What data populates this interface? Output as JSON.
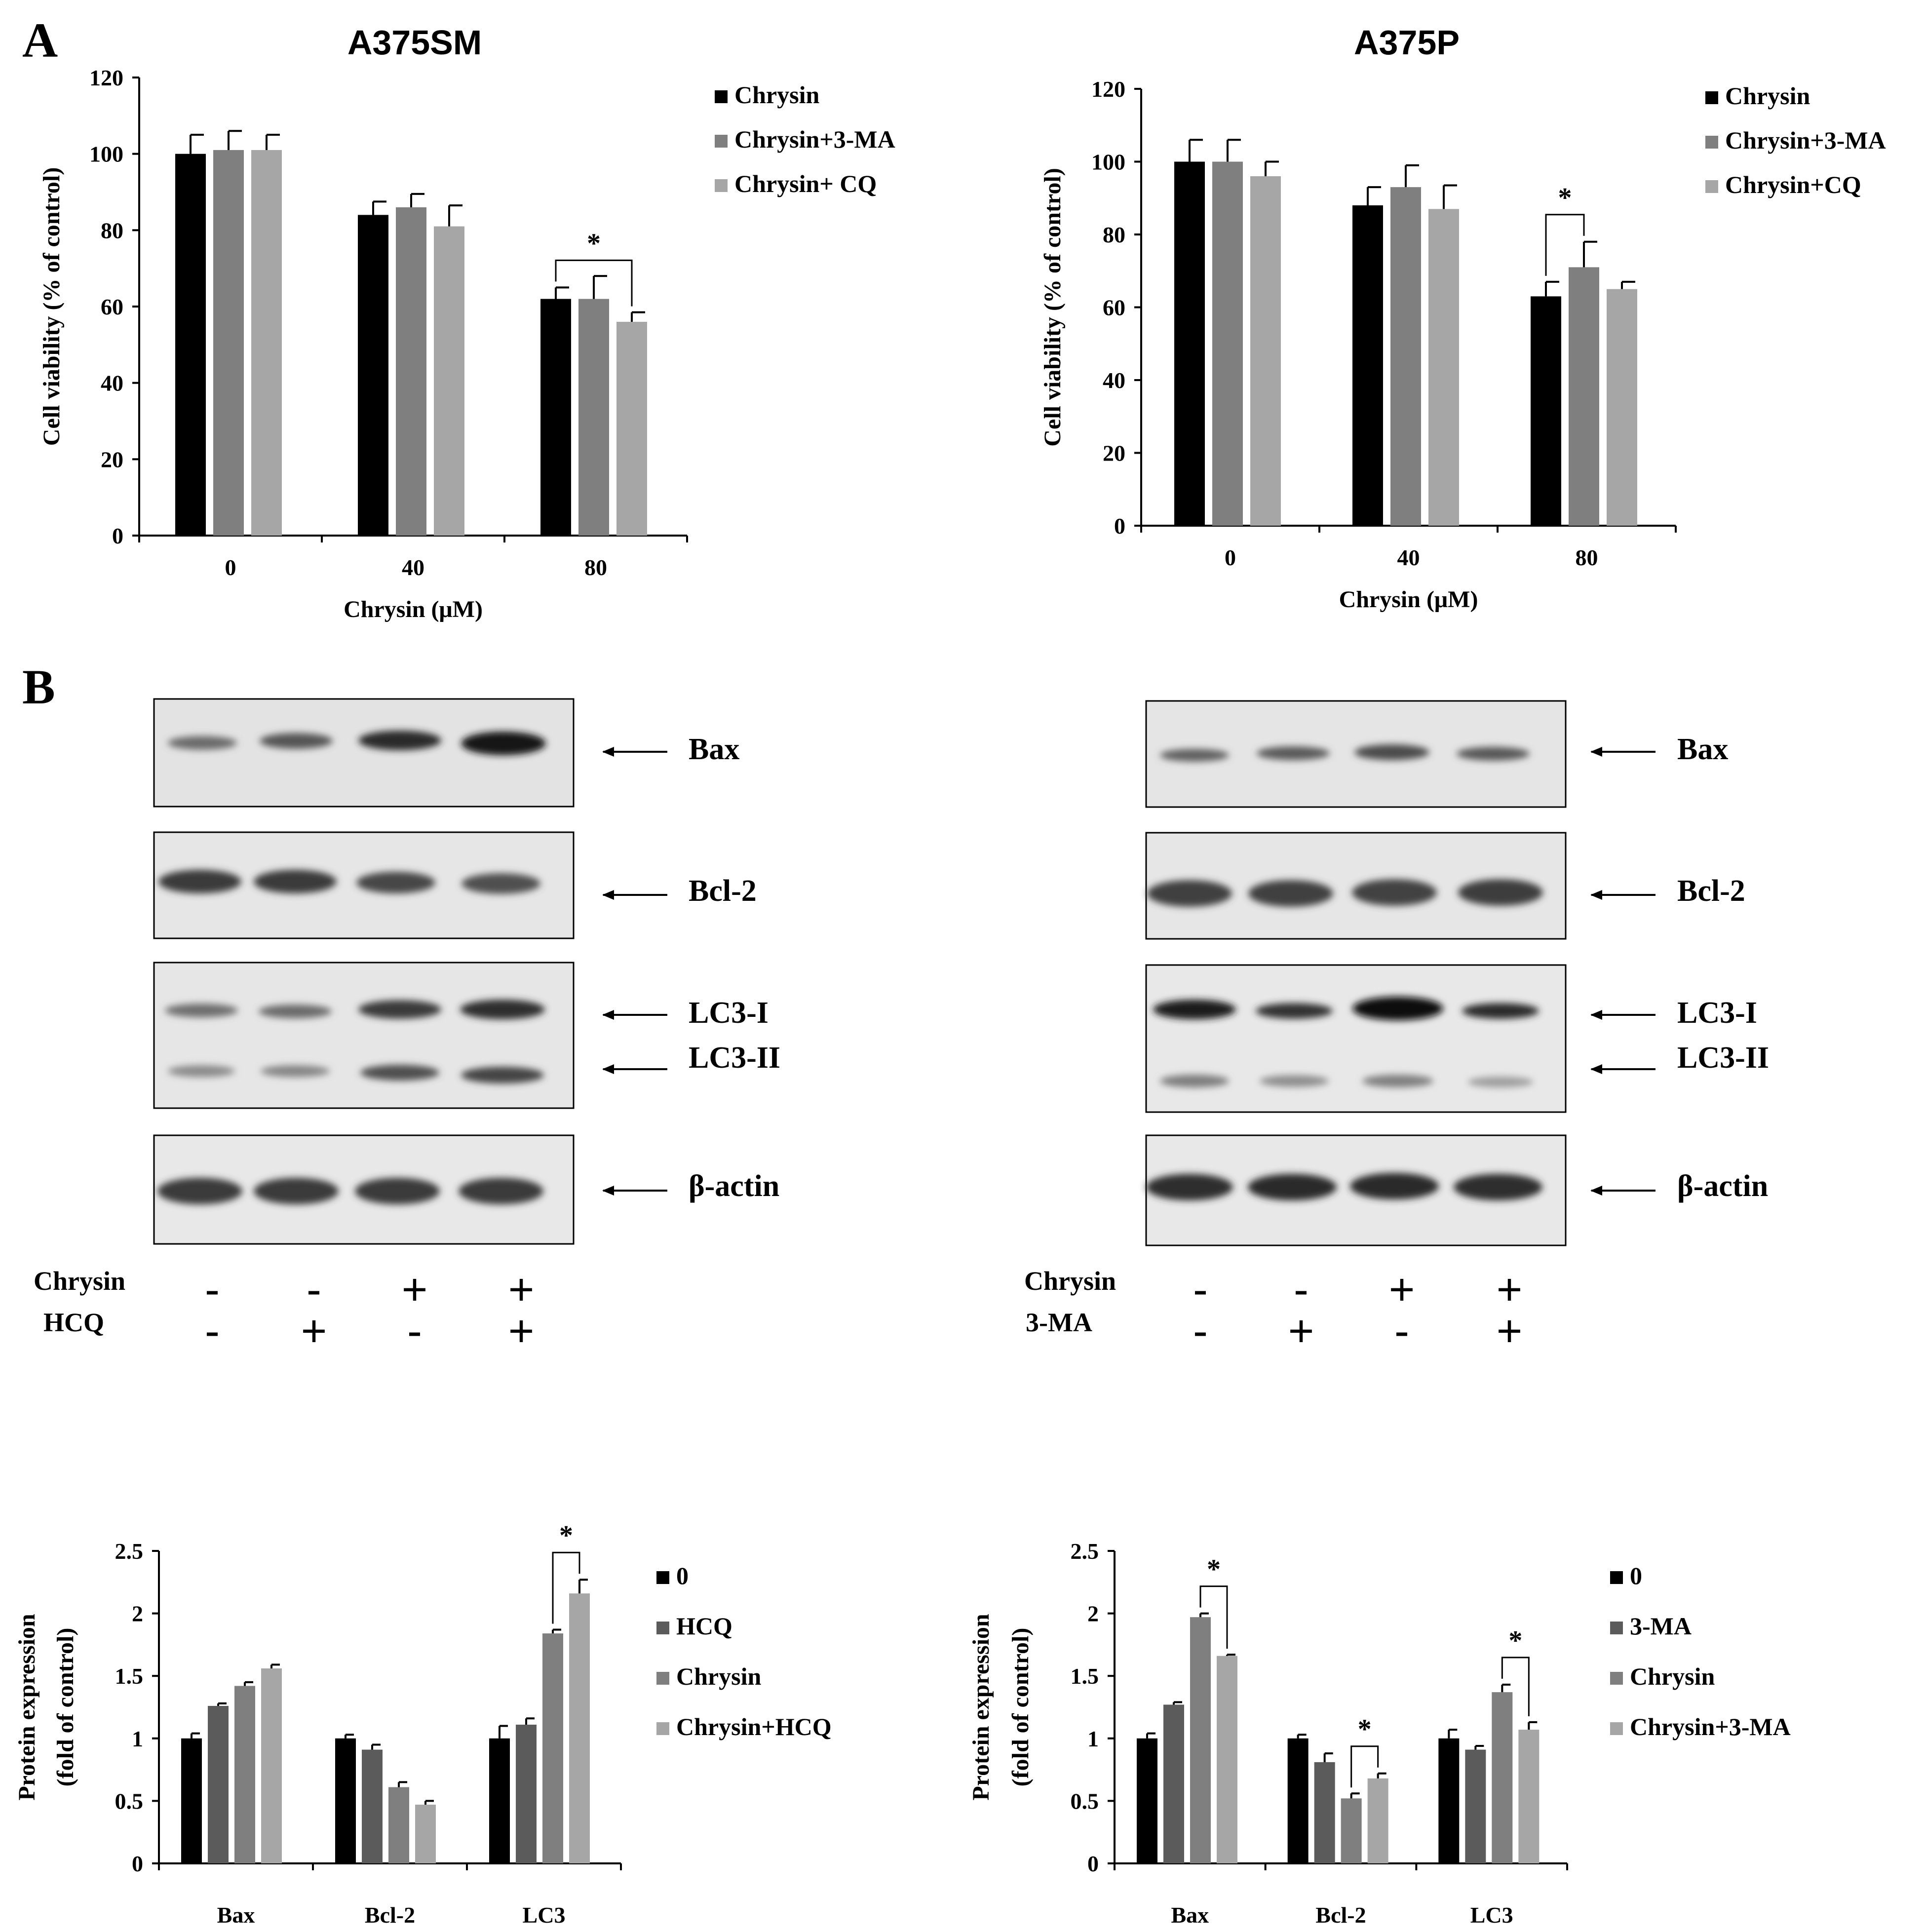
{
  "panel_labels": {
    "a": "A",
    "b": "B"
  },
  "blot_blocks": [
    {
      "proteins": [
        "Bax",
        "Bcl-2",
        "LC3-I",
        "LC3-II",
        "β-actin"
      ],
      "treatments": [
        {
          "name": "Chrysin",
          "signs": [
            "-",
            "-",
            "+",
            "+"
          ]
        },
        {
          "name": "HCQ",
          "signs": [
            "-",
            "+",
            "-",
            "+"
          ]
        }
      ]
    },
    {
      "proteins": [
        "Bax",
        "Bcl-2",
        "LC3-I",
        "LC3-II",
        "β-actin"
      ],
      "treatments": [
        {
          "name": "Chrysin",
          "signs": [
            "-",
            "-",
            "+",
            "+"
          ]
        },
        {
          "name": "3-MA",
          "signs": [
            "-",
            "+",
            "-",
            "+"
          ]
        }
      ]
    }
  ],
  "colors": [
    "#000000",
    "#5b5b5b",
    "#7f7f7f",
    "#a6a6a6"
  ],
  "chart_data": [
    {
      "type": "bar",
      "title": "A375SM",
      "xlabel": "Chrysin (μM)",
      "ylabel": "Cell viability (% of control)",
      "ylim": [
        0,
        120
      ],
      "yticks": [
        "0",
        "20",
        "40",
        "60",
        "80",
        "100",
        "120"
      ],
      "categories": [
        "0",
        "40",
        "80"
      ],
      "series": [
        {
          "name": "Chrysin",
          "values": [
            100,
            84,
            62
          ],
          "errors": [
            5,
            3.5,
            3
          ]
        },
        {
          "name": "Chrysin+3-MA",
          "values": [
            101,
            86,
            62
          ],
          "errors": [
            5,
            3.5,
            6
          ]
        },
        {
          "name": "Chrysin+ CQ",
          "values": [
            101,
            81,
            56
          ],
          "errors": [
            4,
            5.5,
            2.5
          ]
        }
      ],
      "significance": [
        {
          "category": "80",
          "from_series": 0,
          "to_series": 2,
          "label": "*"
        }
      ]
    },
    {
      "type": "bar",
      "title": "A375P",
      "xlabel": "Chrysin (μM)",
      "ylabel": "Cell viability (% of control)",
      "ylim": [
        0,
        120
      ],
      "yticks": [
        "0",
        "20",
        "40",
        "60",
        "80",
        "100",
        "120"
      ],
      "categories": [
        "0",
        "40",
        "80"
      ],
      "series": [
        {
          "name": "Chrysin",
          "values": [
            100,
            88,
            63
          ],
          "errors": [
            6,
            5,
            4
          ]
        },
        {
          "name": "Chrysin+3-MA",
          "values": [
            100,
            93,
            71
          ],
          "errors": [
            6,
            6,
            7
          ]
        },
        {
          "name": "Chrysin+CQ",
          "values": [
            96,
            87,
            65
          ],
          "errors": [
            4,
            6.5,
            2
          ]
        }
      ],
      "significance": [
        {
          "category": "80",
          "from_series": 0,
          "to_series": 1,
          "label": "*"
        }
      ]
    },
    {
      "type": "bar",
      "title": "",
      "xlabel": "",
      "ylabel": "Protein expression (fold of control)",
      "ylabel_lines": [
        "Protein expression",
        "(fold of control)"
      ],
      "ylim": [
        0,
        2.5
      ],
      "yticks": [
        "0",
        "0.5",
        "1",
        "1.5",
        "2",
        "2.5"
      ],
      "categories": [
        "Bax",
        "Bcl-2",
        "LC3"
      ],
      "series": [
        {
          "name": "0",
          "values": [
            1.0,
            1.0,
            1.0
          ],
          "errors": [
            0.04,
            0.03,
            0.1
          ]
        },
        {
          "name": "HCQ",
          "values": [
            1.26,
            0.91,
            1.11
          ],
          "errors": [
            0.02,
            0.04,
            0.05
          ]
        },
        {
          "name": "Chrysin",
          "values": [
            1.42,
            0.61,
            1.84
          ],
          "errors": [
            0.03,
            0.04,
            0.03
          ]
        },
        {
          "name": "Chrysin+HCQ",
          "values": [
            1.56,
            0.47,
            2.16
          ],
          "errors": [
            0.03,
            0.03,
            0.11
          ]
        }
      ],
      "significance": [
        {
          "category": "LC3",
          "from_series": 2,
          "to_series": 3,
          "label": "*"
        }
      ]
    },
    {
      "type": "bar",
      "title": "",
      "xlabel": "",
      "ylabel": "Protein expression (fold of control)",
      "ylabel_lines": [
        "Protein expression",
        "(fold of control)"
      ],
      "ylim": [
        0,
        2.5
      ],
      "yticks": [
        "0",
        "0.5",
        "1",
        "1.5",
        "2",
        "2.5"
      ],
      "categories": [
        "Bax",
        "Bcl-2",
        "LC3"
      ],
      "series": [
        {
          "name": "0",
          "values": [
            1.0,
            1.0,
            1.0
          ],
          "errors": [
            0.04,
            0.03,
            0.07
          ]
        },
        {
          "name": "3-MA",
          "values": [
            1.27,
            0.81,
            0.91
          ],
          "errors": [
            0.02,
            0.07,
            0.03
          ]
        },
        {
          "name": "Chrysin",
          "values": [
            1.97,
            0.52,
            1.37
          ],
          "errors": [
            0.03,
            0.04,
            0.06
          ]
        },
        {
          "name": "Chrysin+3-MA",
          "values": [
            1.66,
            0.68,
            1.07
          ],
          "errors": [
            0.01,
            0.04,
            0.06
          ]
        }
      ],
      "significance": [
        {
          "category": "Bax",
          "from_series": 2,
          "to_series": 3,
          "label": "*"
        },
        {
          "category": "Bcl-2",
          "from_series": 2,
          "to_series": 3,
          "label": "*"
        },
        {
          "category": "LC3",
          "from_series": 2,
          "to_series": 3,
          "label": "*"
        }
      ]
    }
  ]
}
